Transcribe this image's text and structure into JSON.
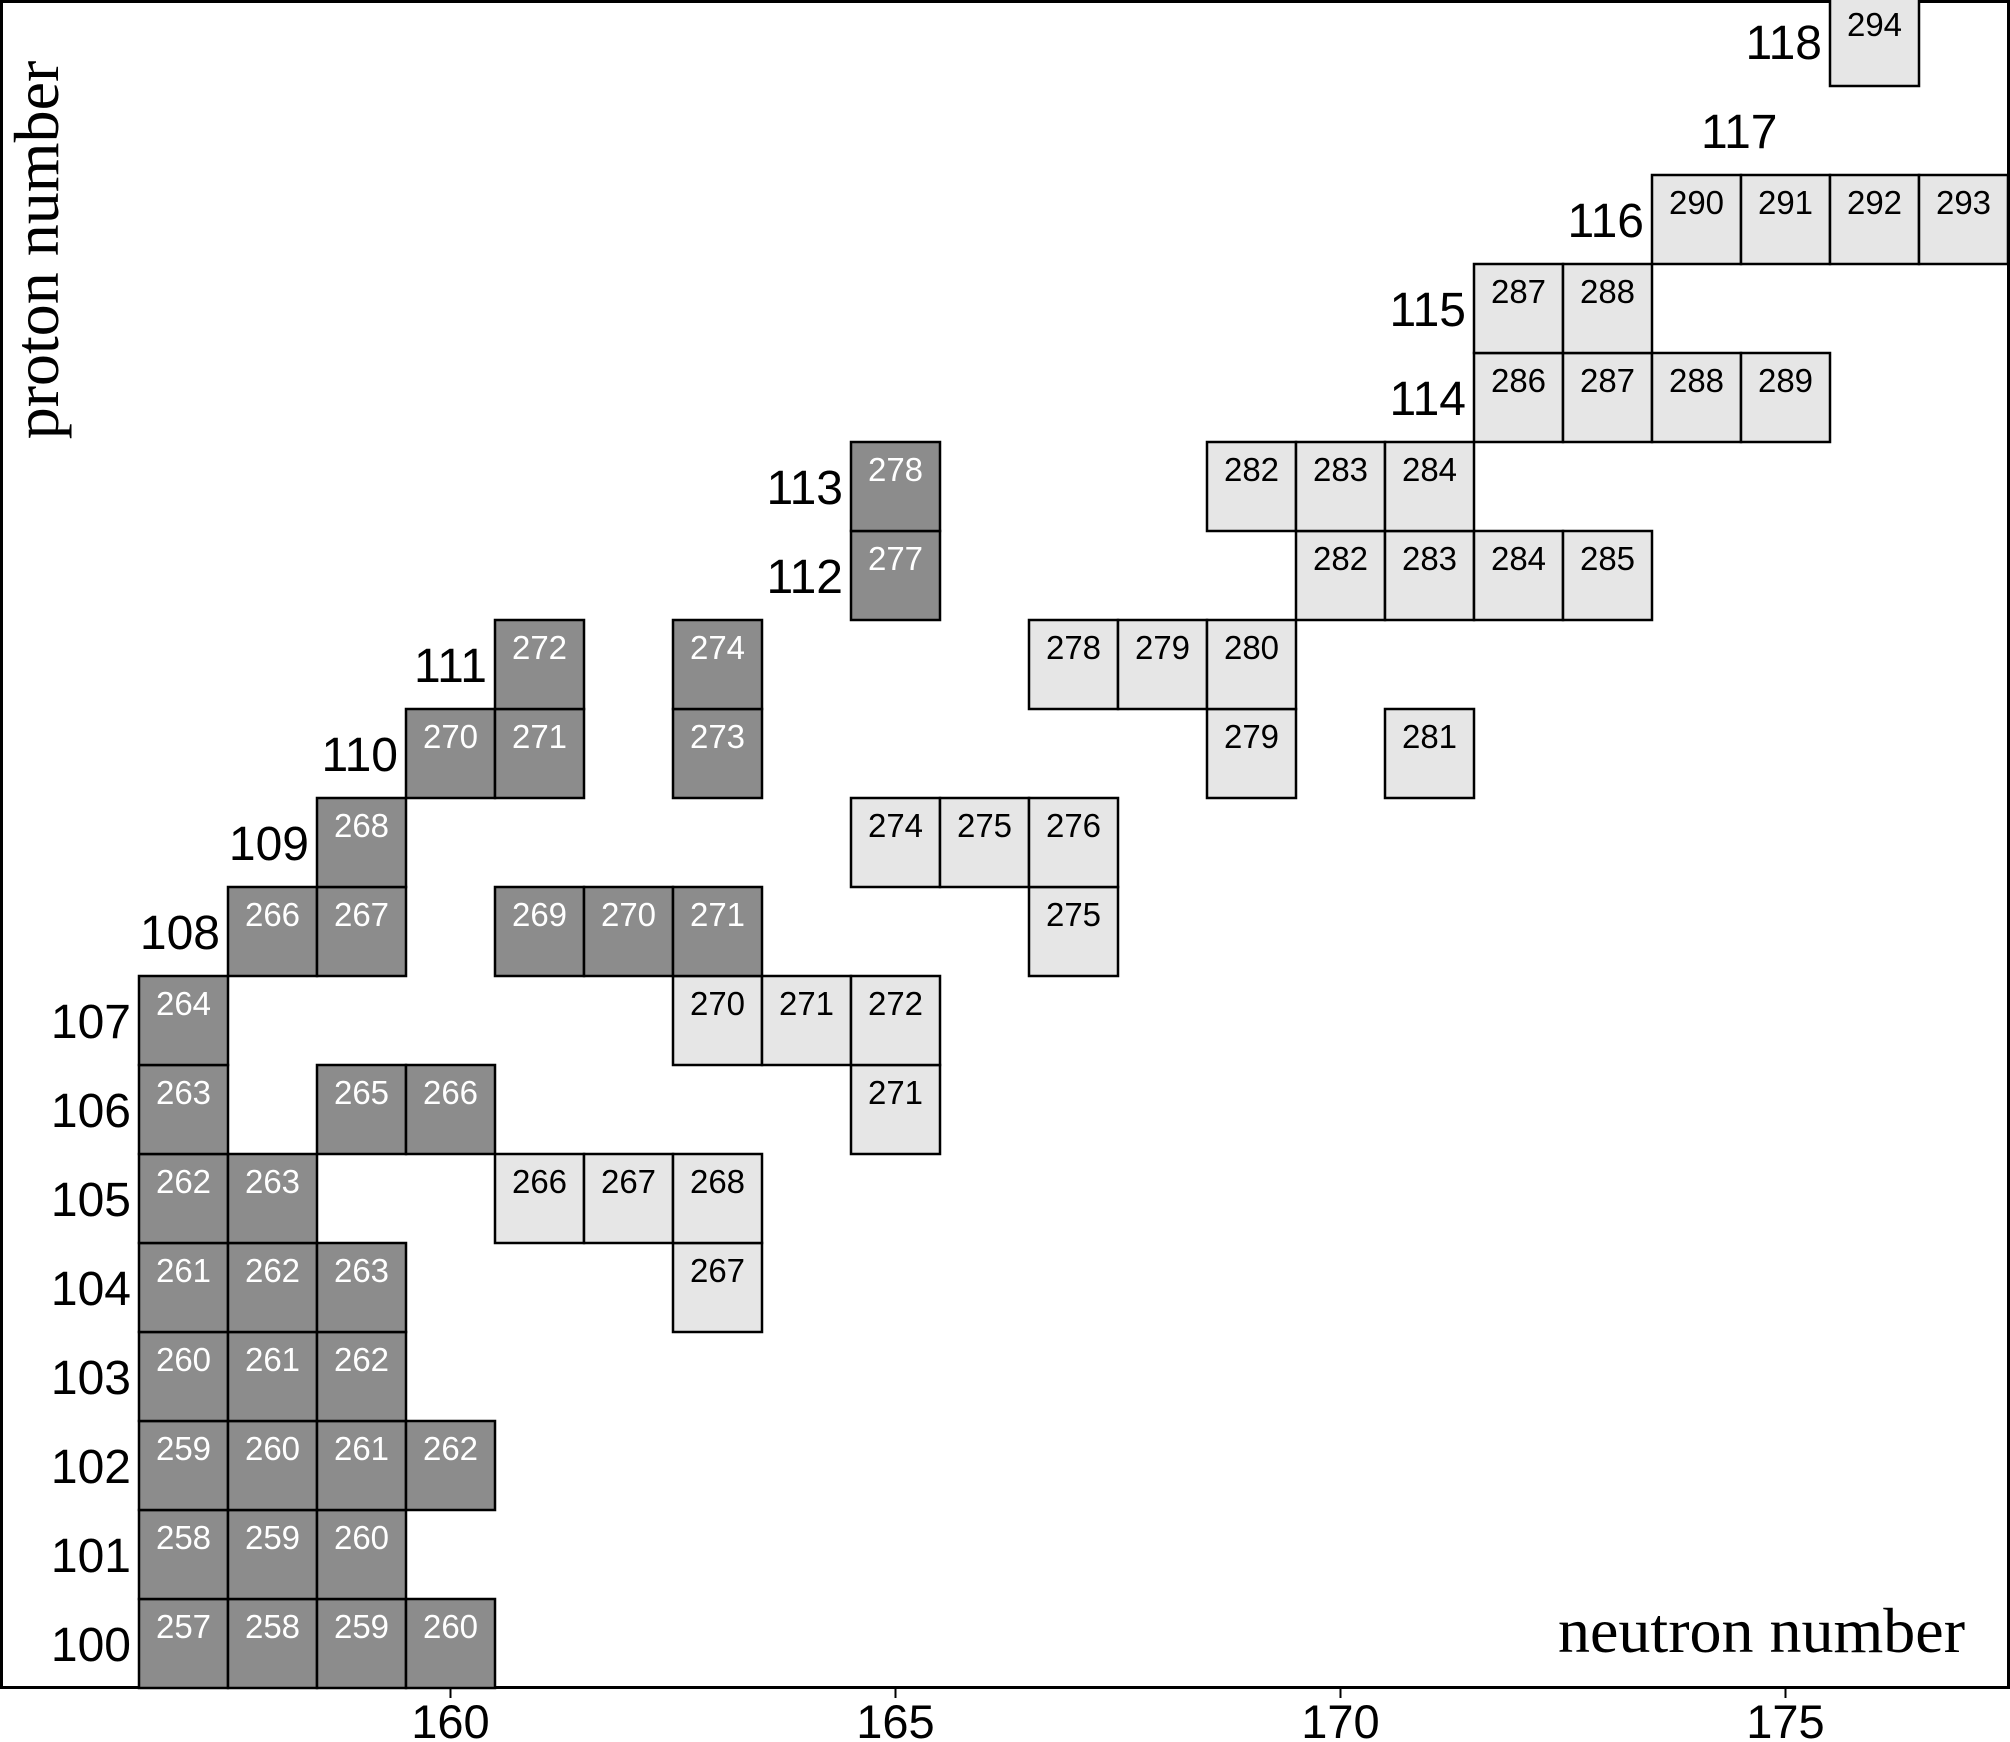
{
  "chart_data": {
    "type": "table",
    "xlabel": "neutron number",
    "ylabel": "proton number",
    "x_ticks": [
      160,
      165,
      170,
      175
    ],
    "colors": {
      "dark_fill": "#8c8c8c",
      "dark_text": "#ffffff",
      "light_fill": "#e6e6e6",
      "light_text": "#000000",
      "frame": "#000000"
    },
    "proton_labels": [
      {
        "z": 100,
        "text": "100"
      },
      {
        "z": 101,
        "text": "101"
      },
      {
        "z": 102,
        "text": "102"
      },
      {
        "z": 103,
        "text": "103"
      },
      {
        "z": 104,
        "text": "104"
      },
      {
        "z": 105,
        "text": "105"
      },
      {
        "z": 106,
        "text": "106"
      },
      {
        "z": 107,
        "text": "107"
      },
      {
        "z": 108,
        "text": "108"
      },
      {
        "z": 109,
        "text": "109"
      },
      {
        "z": 110,
        "text": "110"
      },
      {
        "z": 111,
        "text": "111"
      },
      {
        "z": 112,
        "text": "112"
      },
      {
        "z": 113,
        "text": "113"
      },
      {
        "z": 114,
        "text": "114"
      },
      {
        "z": 115,
        "text": "115"
      },
      {
        "z": 116,
        "text": "116"
      },
      {
        "z": 117,
        "text": "117"
      },
      {
        "z": 118,
        "text": "118"
      }
    ],
    "nuclides": [
      {
        "z": 100,
        "n": 157,
        "a": 257,
        "style": "dark"
      },
      {
        "z": 100,
        "n": 158,
        "a": 258,
        "style": "dark"
      },
      {
        "z": 100,
        "n": 159,
        "a": 259,
        "style": "dark"
      },
      {
        "z": 100,
        "n": 160,
        "a": 260,
        "style": "dark"
      },
      {
        "z": 101,
        "n": 157,
        "a": 258,
        "style": "dark"
      },
      {
        "z": 101,
        "n": 158,
        "a": 259,
        "style": "dark"
      },
      {
        "z": 101,
        "n": 159,
        "a": 260,
        "style": "dark"
      },
      {
        "z": 102,
        "n": 157,
        "a": 259,
        "style": "dark"
      },
      {
        "z": 102,
        "n": 158,
        "a": 260,
        "style": "dark"
      },
      {
        "z": 102,
        "n": 159,
        "a": 261,
        "style": "dark"
      },
      {
        "z": 102,
        "n": 160,
        "a": 262,
        "style": "dark"
      },
      {
        "z": 103,
        "n": 157,
        "a": 260,
        "style": "dark"
      },
      {
        "z": 103,
        "n": 158,
        "a": 261,
        "style": "dark"
      },
      {
        "z": 103,
        "n": 159,
        "a": 262,
        "style": "dark"
      },
      {
        "z": 104,
        "n": 157,
        "a": 261,
        "style": "dark"
      },
      {
        "z": 104,
        "n": 158,
        "a": 262,
        "style": "dark"
      },
      {
        "z": 104,
        "n": 159,
        "a": 263,
        "style": "dark"
      },
      {
        "z": 104,
        "n": 163,
        "a": 267,
        "style": "light"
      },
      {
        "z": 105,
        "n": 157,
        "a": 262,
        "style": "dark"
      },
      {
        "z": 105,
        "n": 158,
        "a": 263,
        "style": "dark"
      },
      {
        "z": 105,
        "n": 161,
        "a": 266,
        "style": "light"
      },
      {
        "z": 105,
        "n": 162,
        "a": 267,
        "style": "light"
      },
      {
        "z": 105,
        "n": 163,
        "a": 268,
        "style": "light"
      },
      {
        "z": 106,
        "n": 157,
        "a": 263,
        "style": "dark"
      },
      {
        "z": 106,
        "n": 159,
        "a": 265,
        "style": "dark"
      },
      {
        "z": 106,
        "n": 160,
        "a": 266,
        "style": "dark"
      },
      {
        "z": 106,
        "n": 165,
        "a": 271,
        "style": "light"
      },
      {
        "z": 107,
        "n": 157,
        "a": 264,
        "style": "dark"
      },
      {
        "z": 107,
        "n": 163,
        "a": 270,
        "style": "light"
      },
      {
        "z": 107,
        "n": 164,
        "a": 271,
        "style": "light"
      },
      {
        "z": 107,
        "n": 165,
        "a": 272,
        "style": "light"
      },
      {
        "z": 108,
        "n": 158,
        "a": 266,
        "style": "dark"
      },
      {
        "z": 108,
        "n": 159,
        "a": 267,
        "style": "dark"
      },
      {
        "z": 108,
        "n": 161,
        "a": 269,
        "style": "dark"
      },
      {
        "z": 108,
        "n": 162,
        "a": 270,
        "style": "dark"
      },
      {
        "z": 108,
        "n": 163,
        "a": 271,
        "style": "dark"
      },
      {
        "z": 108,
        "n": 167,
        "a": 275,
        "style": "light"
      },
      {
        "z": 109,
        "n": 159,
        "a": 268,
        "style": "dark"
      },
      {
        "z": 109,
        "n": 165,
        "a": 274,
        "style": "light"
      },
      {
        "z": 109,
        "n": 166,
        "a": 275,
        "style": "light"
      },
      {
        "z": 109,
        "n": 167,
        "a": 276,
        "style": "light"
      },
      {
        "z": 110,
        "n": 160,
        "a": 270,
        "style": "dark"
      },
      {
        "z": 110,
        "n": 161,
        "a": 271,
        "style": "dark"
      },
      {
        "z": 110,
        "n": 163,
        "a": 273,
        "style": "dark"
      },
      {
        "z": 110,
        "n": 169,
        "a": 279,
        "style": "light"
      },
      {
        "z": 110,
        "n": 171,
        "a": 281,
        "style": "light"
      },
      {
        "z": 111,
        "n": 161,
        "a": 272,
        "style": "dark"
      },
      {
        "z": 111,
        "n": 163,
        "a": 274,
        "style": "dark"
      },
      {
        "z": 111,
        "n": 167,
        "a": 278,
        "style": "light"
      },
      {
        "z": 111,
        "n": 168,
        "a": 279,
        "style": "light"
      },
      {
        "z": 111,
        "n": 169,
        "a": 280,
        "style": "light"
      },
      {
        "z": 112,
        "n": 165,
        "a": 277,
        "style": "dark"
      },
      {
        "z": 112,
        "n": 170,
        "a": 282,
        "style": "light"
      },
      {
        "z": 112,
        "n": 171,
        "a": 283,
        "style": "light"
      },
      {
        "z": 112,
        "n": 172,
        "a": 284,
        "style": "light"
      },
      {
        "z": 112,
        "n": 173,
        "a": 285,
        "style": "light"
      },
      {
        "z": 113,
        "n": 165,
        "a": 278,
        "style": "dark"
      },
      {
        "z": 113,
        "n": 169,
        "a": 282,
        "style": "light"
      },
      {
        "z": 113,
        "n": 170,
        "a": 283,
        "style": "light"
      },
      {
        "z": 113,
        "n": 171,
        "a": 284,
        "style": "light"
      },
      {
        "z": 114,
        "n": 172,
        "a": 286,
        "style": "light"
      },
      {
        "z": 114,
        "n": 173,
        "a": 287,
        "style": "light"
      },
      {
        "z": 114,
        "n": 174,
        "a": 288,
        "style": "light"
      },
      {
        "z": 114,
        "n": 175,
        "a": 289,
        "style": "light"
      },
      {
        "z": 115,
        "n": 172,
        "a": 287,
        "style": "light"
      },
      {
        "z": 115,
        "n": 173,
        "a": 288,
        "style": "light"
      },
      {
        "z": 116,
        "n": 174,
        "a": 290,
        "style": "light"
      },
      {
        "z": 116,
        "n": 175,
        "a": 291,
        "style": "light"
      },
      {
        "z": 116,
        "n": 176,
        "a": 292,
        "style": "light"
      },
      {
        "z": 116,
        "n": 177,
        "a": 293,
        "style": "light"
      },
      {
        "z": 118,
        "n": 176,
        "a": 294,
        "style": "light"
      }
    ]
  }
}
